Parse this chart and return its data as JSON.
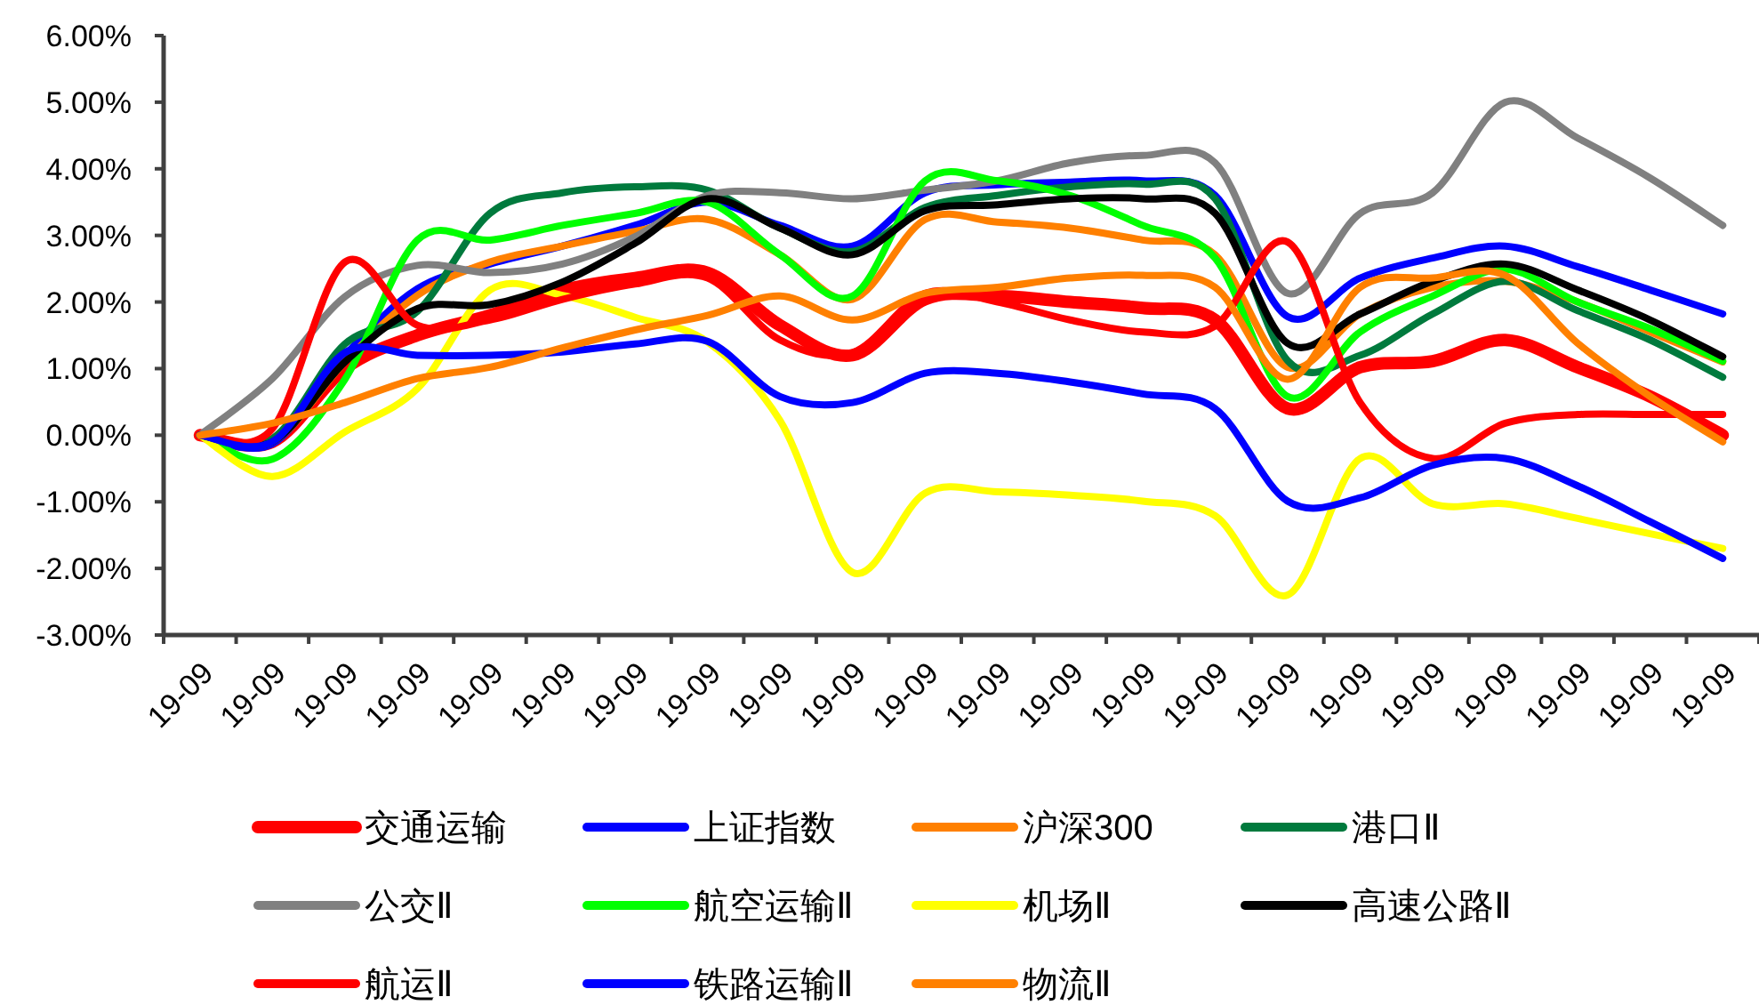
{
  "chart_data": {
    "type": "line",
    "categories": [
      "19-09",
      "19-09",
      "19-09",
      "19-09",
      "19-09",
      "19-09",
      "19-09",
      "19-09",
      "19-09",
      "19-09",
      "19-09",
      "19-09",
      "19-09",
      "19-09",
      "19-09",
      "19-09",
      "19-09",
      "19-09",
      "19-09",
      "19-09",
      "19-09",
      "19-09"
    ],
    "ylim": [
      -3,
      6
    ],
    "yticks": [
      {
        "value": -3,
        "label": "-3.00%"
      },
      {
        "value": -2,
        "label": "-2.00%"
      },
      {
        "value": -1,
        "label": "-1.00%"
      },
      {
        "value": 0,
        "label": "0.00%"
      },
      {
        "value": 1,
        "label": "1.00%"
      },
      {
        "value": 2,
        "label": "2.00%"
      },
      {
        "value": 3,
        "label": "3.00%"
      },
      {
        "value": 4,
        "label": "4.00%"
      },
      {
        "value": 5,
        "label": "5.00%"
      },
      {
        "value": 6,
        "label": "6.00%"
      }
    ],
    "legend": "bottom",
    "series": [
      {
        "name": "交通运输",
        "color": "#ff0000",
        "values": [
          0,
          -0.1,
          1.0,
          1.5,
          1.8,
          2.18,
          2.36,
          2.44,
          1.65,
          1.2,
          2.04,
          2.09,
          2.0,
          1.91,
          1.73,
          0.4,
          1.02,
          1.11,
          1.43,
          1.02,
          0.58,
          0.0
        ]
      },
      {
        "name": "上证指数",
        "color": "#0000ff",
        "values": [
          0,
          -0.13,
          1.2,
          2.2,
          2.57,
          2.84,
          3.15,
          3.5,
          3.15,
          2.84,
          3.64,
          3.76,
          3.8,
          3.82,
          3.6,
          1.78,
          2.36,
          2.66,
          2.84,
          2.53,
          2.18,
          1.82
        ]
      },
      {
        "name": "沪深300",
        "color": "#ff8000",
        "values": [
          0,
          -0.1,
          1.1,
          2.1,
          2.6,
          2.84,
          3.06,
          3.24,
          2.71,
          2.04,
          3.24,
          3.2,
          3.11,
          2.93,
          2.71,
          1.02,
          1.82,
          2.22,
          2.31,
          2.0,
          1.55,
          1.1
        ]
      },
      {
        "name": "港口Ⅱ",
        "color": "#007a3d",
        "values": [
          0,
          -0.05,
          1.37,
          1.86,
          3.33,
          3.64,
          3.73,
          3.68,
          3.11,
          2.76,
          3.42,
          3.6,
          3.73,
          3.77,
          3.55,
          1.12,
          1.2,
          1.82,
          2.31,
          1.87,
          1.43,
          0.87
        ]
      },
      {
        "name": "公交Ⅱ",
        "color": "#808080",
        "values": [
          0,
          0.85,
          2.08,
          2.55,
          2.44,
          2.57,
          2.98,
          3.6,
          3.64,
          3.55,
          3.68,
          3.82,
          4.09,
          4.2,
          4.09,
          2.13,
          3.33,
          3.64,
          5.0,
          4.46,
          3.86,
          3.15
        ]
      },
      {
        "name": "航空运输Ⅱ",
        "color": "#00ff00",
        "values": [
          0,
          -0.36,
          0.84,
          2.93,
          2.93,
          3.15,
          3.33,
          3.5,
          2.71,
          2.09,
          3.82,
          3.82,
          3.6,
          3.15,
          2.66,
          0.58,
          1.55,
          2.09,
          2.49,
          2.0,
          1.6,
          1.11
        ]
      },
      {
        "name": "机场Ⅱ",
        "color": "#ffff00",
        "values": [
          0,
          -0.62,
          0.05,
          0.7,
          2.18,
          2.1,
          1.77,
          1.4,
          0.22,
          -2.06,
          -0.87,
          -0.85,
          -0.9,
          -0.99,
          -1.21,
          -2.4,
          -0.35,
          -1.03,
          -1.03,
          -1.25,
          -1.48,
          -1.7
        ]
      },
      {
        "name": "高速公路Ⅱ",
        "color": "#000000",
        "values": [
          0,
          -0.1,
          1.1,
          1.9,
          1.96,
          2.3,
          2.88,
          3.55,
          3.11,
          2.71,
          3.37,
          3.46,
          3.55,
          3.55,
          3.33,
          1.38,
          1.82,
          2.31,
          2.57,
          2.18,
          1.73,
          1.18
        ]
      },
      {
        "name": "航运Ⅱ",
        "color": "#ff0000",
        "values": [
          0,
          0.1,
          2.6,
          1.65,
          1.73,
          2.04,
          2.27,
          2.36,
          1.43,
          1.24,
          2.13,
          2.0,
          1.73,
          1.55,
          1.64,
          2.9,
          0.49,
          -0.35,
          0.18,
          0.31,
          0.31,
          0.31
        ]
      },
      {
        "name": "铁路运输Ⅱ",
        "color": "#0000ff",
        "values": [
          0,
          -0.1,
          1.24,
          1.2,
          1.2,
          1.25,
          1.37,
          1.41,
          0.58,
          0.49,
          0.93,
          0.93,
          0.8,
          0.62,
          0.4,
          -0.99,
          -0.94,
          -0.45,
          -0.35,
          -0.76,
          -1.3,
          -1.85
        ]
      },
      {
        "name": "物流Ⅱ",
        "color": "#ff8000",
        "values": [
          0,
          0.18,
          0.49,
          0.85,
          1.02,
          1.31,
          1.58,
          1.8,
          2.09,
          1.73,
          2.13,
          2.22,
          2.36,
          2.4,
          2.22,
          0.84,
          2.22,
          2.36,
          2.4,
          1.38,
          0.58,
          -0.1
        ]
      }
    ]
  }
}
